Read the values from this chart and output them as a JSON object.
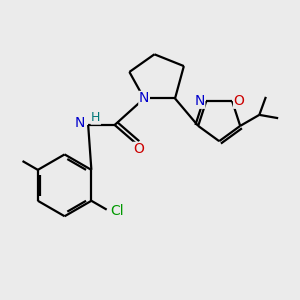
{
  "bg_color": "#ebebeb",
  "bond_color": "#000000",
  "bond_width": 1.6,
  "atom_colors": {
    "N": "#0000cc",
    "O": "#cc0000",
    "Cl": "#009900",
    "H": "#007777",
    "C": "#000000"
  },
  "font_size": 9,
  "fig_size": [
    3.0,
    3.0
  ],
  "dpi": 100
}
